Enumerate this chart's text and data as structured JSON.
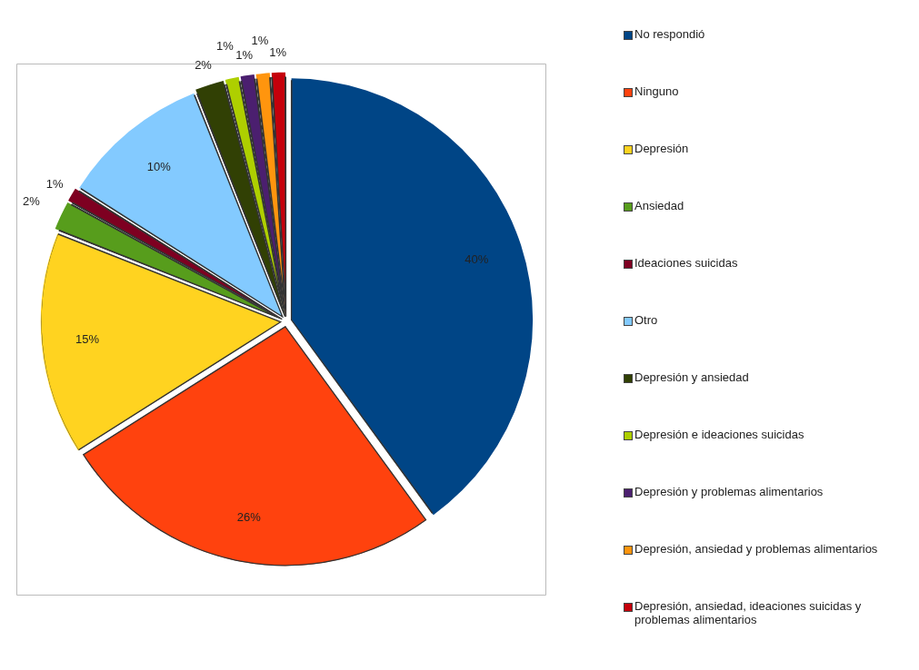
{
  "chart_data": {
    "type": "pie",
    "categories": [
      "No respondió",
      "Ninguno",
      "Depresión",
      "Ansiedad",
      "Ideaciones suicidas",
      "Otro",
      "Depresión y ansiedad",
      "Depresión e ideaciones suicidas",
      "Depresión y problemas alimentarios",
      "Depresión, ansiedad y problemas alimentarios",
      "Depresión, ansiedad, ideaciones suicidas y problemas alimentarios"
    ],
    "values": [
      40,
      26,
      15,
      2,
      1,
      10,
      2,
      1,
      1,
      1,
      1
    ],
    "colors": [
      "#004586",
      "#ff420e",
      "#ffd320",
      "#579d1c",
      "#7e0021",
      "#83caff",
      "#314004",
      "#aecf00",
      "#4b1f6f",
      "#ff950e",
      "#c5000b"
    ],
    "value_labels": [
      "40%",
      "26%",
      "15%",
      "2%",
      "1%",
      "10%",
      "2%",
      "1%",
      "1%",
      "1%",
      "1%"
    ],
    "legend": "right"
  }
}
